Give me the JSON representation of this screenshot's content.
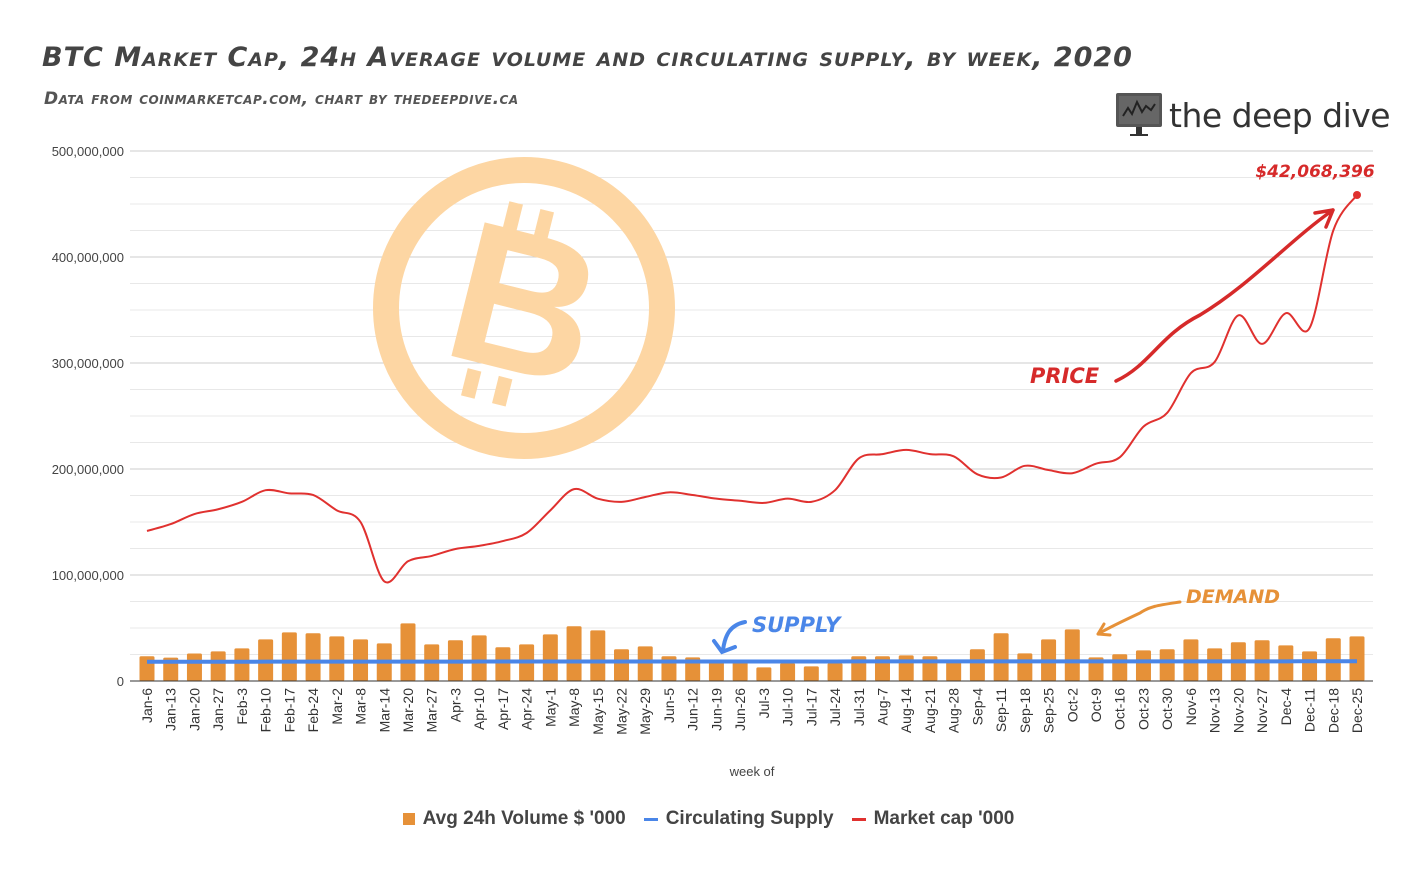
{
  "title": "BTC Market Cap, 24h Average volume and circulating supply, by week, 2020",
  "subtitle": "Data from coinmarketcap.com, chart by thedeepdive.ca",
  "logo": {
    "text": "the deep dive",
    "icon": "monitor-chart-icon"
  },
  "annotations": {
    "price": "PRICE",
    "supply": "SUPPLY",
    "demand": "DEMAND",
    "last_value": "$42,068,396"
  },
  "colors": {
    "volume": "#e69138",
    "supply": "#4a86e8",
    "market_cap": "#e0312f",
    "watermark": "#fdd6a3",
    "price_note": "#d62a2a",
    "demand_note": "#e69138",
    "supply_note": "#4a86e8"
  },
  "chart_data": {
    "type": "bar+line",
    "title": "BTC Market Cap, 24h Average volume and circulating supply, by week, 2020",
    "xlabel": "week of",
    "ylabel": "",
    "ylim": [
      0,
      500000000
    ],
    "yticks": [
      "0",
      "100,000,000",
      "200,000,000",
      "300,000,000",
      "400,000,000",
      "500,000,000"
    ],
    "grid": true,
    "legend": "bottom",
    "categories": [
      "Jan-6",
      "Jan-13",
      "Jan-20",
      "Jan-27",
      "Feb-3",
      "Feb-10",
      "Feb-17",
      "Feb-24",
      "Mar-2",
      "Mar-8",
      "Mar-14",
      "Mar-20",
      "Mar-27",
      "Apr-3",
      "Apr-10",
      "Apr-17",
      "Apr-24",
      "May-1",
      "May-8",
      "May-15",
      "May-22",
      "May-29",
      "Jun-5",
      "Jun-12",
      "Jun-19",
      "Jun-26",
      "Jul-3",
      "Jul-10",
      "Jul-17",
      "Jul-24",
      "Jul-31",
      "Aug-7",
      "Aug-14",
      "Aug-21",
      "Aug-28",
      "Sep-4",
      "Sep-11",
      "Sep-18",
      "Sep-25",
      "Oct-2",
      "Oct-9",
      "Oct-16",
      "Oct-23",
      "Oct-30",
      "Nov-6",
      "Nov-13",
      "Nov-20",
      "Nov-27",
      "Dec-4",
      "Dec-11",
      "Dec-18",
      "Dec-25"
    ],
    "series": [
      {
        "name": "Avg 24h Volume $ '000",
        "type": "bar",
        "values": [
          23300000,
          22000000,
          26000000,
          28000000,
          30800000,
          39300000,
          45900000,
          45000000,
          42100000,
          39300000,
          35500000,
          54400000,
          34600000,
          38400000,
          43100000,
          31800000,
          34600000,
          44000000,
          51600000,
          47800000,
          29900000,
          32700000,
          23300000,
          22300000,
          20000000,
          19000000,
          12900000,
          16700000,
          13800000,
          16700000,
          23300000,
          23300000,
          24200000,
          23300000,
          19000000,
          29900000,
          45000000,
          26100000,
          39300000,
          48700000,
          22300000,
          25200000,
          28900000,
          29900000,
          39300000,
          30800000,
          36500000,
          38400000,
          33600000,
          28000000,
          40300000,
          42100000
        ]
      },
      {
        "name": "Circulating Supply",
        "type": "line",
        "values": [
          18150000,
          18160000,
          18170000,
          18190000,
          18200000,
          18220000,
          18230000,
          18250000,
          18260000,
          18280000,
          18290000,
          18300000,
          18320000,
          18330000,
          18340000,
          18350000,
          18360000,
          18370000,
          18380000,
          18390000,
          18400000,
          18410000,
          18410000,
          18420000,
          18420000,
          18430000,
          18430000,
          18440000,
          18450000,
          18450000,
          18460000,
          18470000,
          18470000,
          18480000,
          18490000,
          18490000,
          18500000,
          18500000,
          18510000,
          18520000,
          18520000,
          18530000,
          18540000,
          18540000,
          18550000,
          18550000,
          18560000,
          18570000,
          18570000,
          18580000,
          18580000,
          18590000
        ]
      },
      {
        "name": "Market cap '000",
        "type": "line",
        "values": [
          141500000,
          148000000,
          157500000,
          162000000,
          169000000,
          180000000,
          177000000,
          175500000,
          161000000,
          150000000,
          94000000,
          113000000,
          118000000,
          124500000,
          127500000,
          132000000,
          139600000,
          161000000,
          181000000,
          172000000,
          169000000,
          173600000,
          178000000,
          175500000,
          172000000,
          170000000,
          168000000,
          172000000,
          169000000,
          180000000,
          210000000,
          214000000,
          218000000,
          214000000,
          212000000,
          195000000,
          192000000,
          203000000,
          199000000,
          196000000,
          205000000,
          211000000,
          240000000,
          253000000,
          290500000,
          301000000,
          345000000,
          318000000,
          347000000,
          333000000,
          425000000,
          458500000
        ]
      }
    ]
  }
}
